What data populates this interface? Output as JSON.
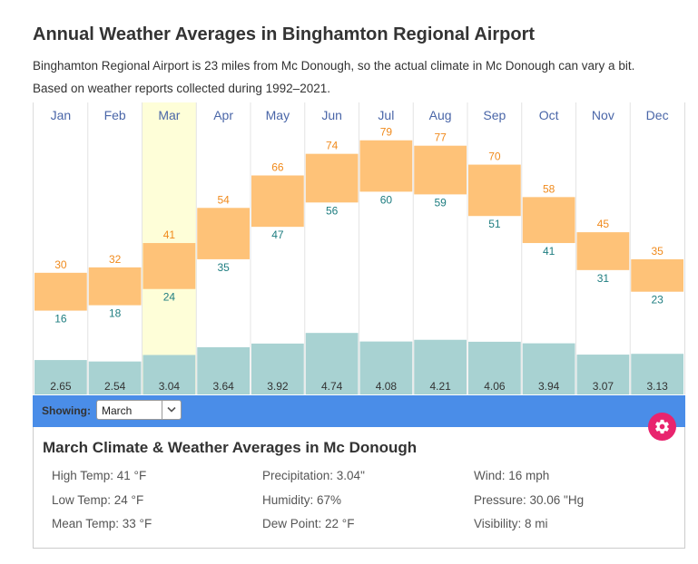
{
  "header": {
    "title": "Annual Weather Averages in Binghamton Regional Airport",
    "subtitle": "Binghamton Regional Airport is 23 miles from Mc Donough, so the actual climate in Mc Donough can vary a bit.",
    "basis": "Based on weather reports collected during 1992–2021."
  },
  "chart_data": {
    "type": "bar",
    "categories": [
      "Jan",
      "Feb",
      "Mar",
      "Apr",
      "May",
      "Jun",
      "Jul",
      "Aug",
      "Sep",
      "Oct",
      "Nov",
      "Dec"
    ],
    "series": [
      {
        "name": "High Temp",
        "values": [
          30,
          32,
          41,
          54,
          66,
          74,
          79,
          77,
          70,
          58,
          45,
          35
        ],
        "color": "#fec278",
        "label_color": "#f08a1c"
      },
      {
        "name": "Low Temp",
        "values": [
          16,
          18,
          24,
          35,
          47,
          56,
          60,
          59,
          51,
          41,
          31,
          23
        ],
        "color": "#fec278",
        "label_color": "#1e7d80"
      },
      {
        "name": "Precipitation",
        "values": [
          2.65,
          2.54,
          3.04,
          3.64,
          3.92,
          4.74,
          4.08,
          4.21,
          4.06,
          3.94,
          3.07,
          3.13
        ],
        "color": "#a8d2d2"
      }
    ],
    "temp_range": [
      -15,
      93
    ],
    "precip_range": [
      0,
      22.5
    ],
    "selected_index": 2,
    "highlight_color": "#fefed8",
    "month_label_color": "#4a66a8"
  },
  "toolbar": {
    "showing_label": "Showing:",
    "selected_month": "March"
  },
  "details": {
    "title": "March Climate & Weather Averages in Mc Donough",
    "col1": [
      "High Temp: 41 °F",
      "Low Temp: 24 °F",
      "Mean Temp: 33 °F"
    ],
    "col2": [
      "Precipitation: 3.04\"",
      "Humidity: 67%",
      "Dew Point: 22 °F"
    ],
    "col3": [
      "Wind: 16 mph",
      "Pressure: 30.06 \"Hg",
      "Visibility: 8 mi"
    ]
  },
  "icons": {
    "dropdown": "chevron-down-icon",
    "settings": "gear-icon"
  }
}
